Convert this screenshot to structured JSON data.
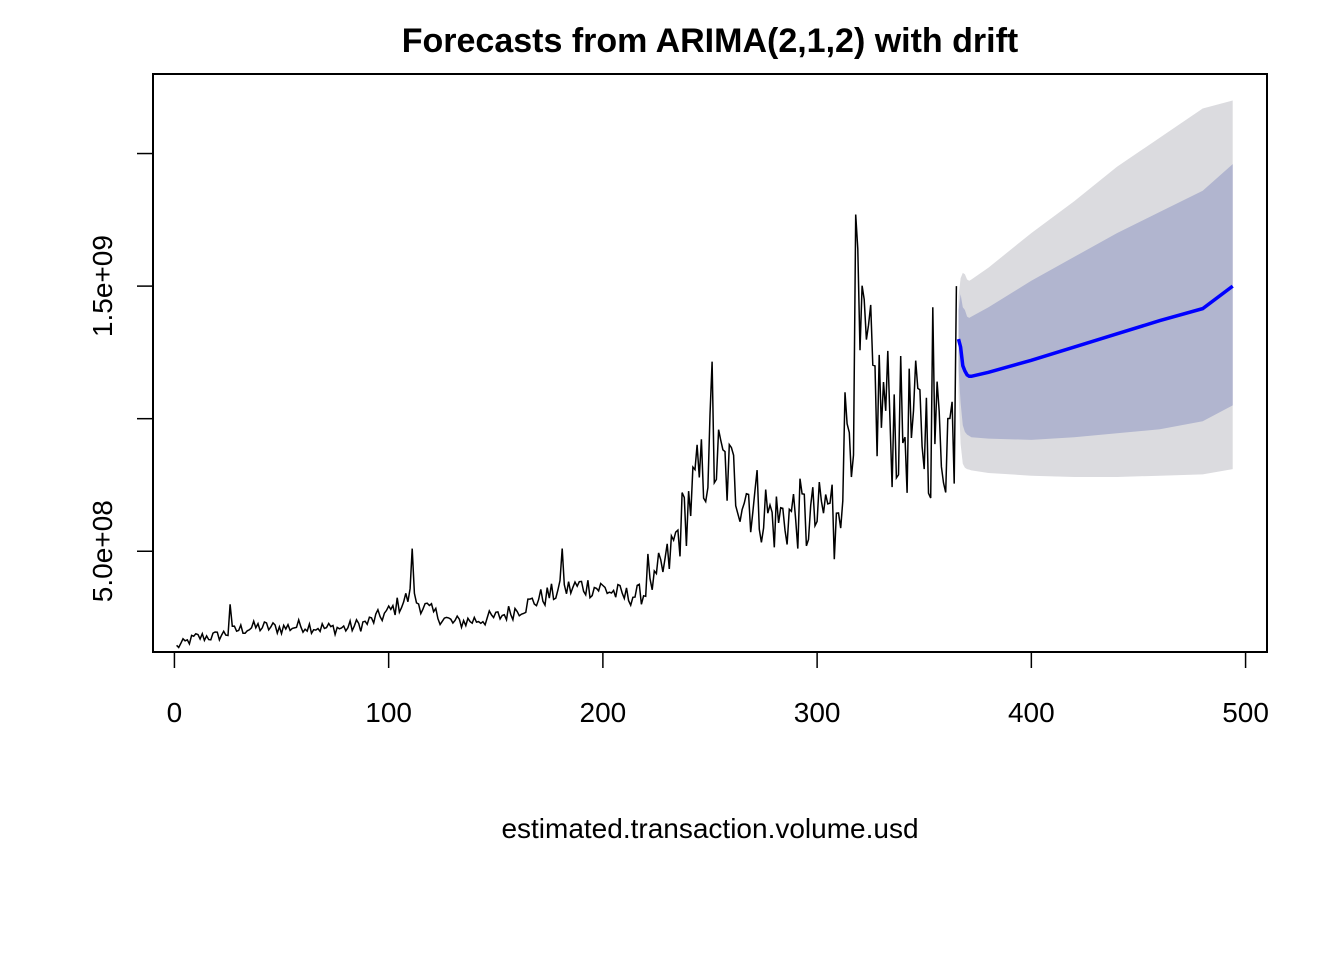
{
  "chart_data": {
    "type": "line",
    "title": "Forecasts from ARIMA(2,1,2) with drift",
    "xlabel": "estimated.transaction.volume.usd",
    "ylabel": "",
    "xlim": [
      -10,
      510
    ],
    "ylim": [
      120000000,
      2300000000
    ],
    "x_ticks": [
      {
        "value": 0,
        "label": "0"
      },
      {
        "value": 100,
        "label": "100"
      },
      {
        "value": 200,
        "label": "200"
      },
      {
        "value": 300,
        "label": "300"
      },
      {
        "value": 400,
        "label": "400"
      },
      {
        "value": 500,
        "label": "500"
      }
    ],
    "y_ticks": [
      {
        "value": 500000000,
        "label": "5.0e+08"
      },
      {
        "value": 1000000000,
        "label": ""
      },
      {
        "value": 1500000000,
        "label": "1.5e+09"
      },
      {
        "value": 2000000000,
        "label": ""
      }
    ],
    "colors": {
      "history": "#000000",
      "forecast": "#0000ff",
      "band80": "#b1b5cf",
      "band95": "#dbdbdf"
    },
    "history": {
      "name": "",
      "x_start": 1,
      "x_end": 365,
      "anchors": [
        [
          1,
          140000000
        ],
        [
          10,
          175000000
        ],
        [
          20,
          180000000
        ],
        [
          30,
          205000000
        ],
        [
          40,
          215000000
        ],
        [
          50,
          210000000
        ],
        [
          60,
          220000000
        ],
        [
          70,
          210000000
        ],
        [
          80,
          210000000
        ],
        [
          90,
          230000000
        ],
        [
          100,
          270000000
        ],
        [
          110,
          330000000
        ],
        [
          120,
          270000000
        ],
        [
          130,
          230000000
        ],
        [
          140,
          240000000
        ],
        [
          150,
          250000000
        ],
        [
          160,
          280000000
        ],
        [
          170,
          320000000
        ],
        [
          180,
          350000000
        ],
        [
          190,
          370000000
        ],
        [
          200,
          360000000
        ],
        [
          210,
          330000000
        ],
        [
          220,
          340000000
        ],
        [
          230,
          450000000
        ],
        [
          240,
          680000000
        ],
        [
          250,
          860000000
        ],
        [
          260,
          780000000
        ],
        [
          270,
          700000000
        ],
        [
          280,
          620000000
        ],
        [
          290,
          640000000
        ],
        [
          300,
          620000000
        ],
        [
          310,
          720000000
        ],
        [
          315,
          1050000000
        ],
        [
          320,
          1200000000
        ],
        [
          330,
          1050000000
        ],
        [
          340,
          960000000
        ],
        [
          350,
          960000000
        ],
        [
          360,
          940000000
        ],
        [
          365,
          1000000000
        ]
      ],
      "spikes": [
        [
          26,
          300000000
        ],
        [
          111,
          510000000
        ],
        [
          181,
          510000000
        ],
        [
          251,
          1215000000
        ],
        [
          318,
          1770000000
        ],
        [
          319,
          1640000000
        ],
        [
          322,
          1450000000
        ],
        [
          354,
          1420000000
        ],
        [
          365,
          1500000000
        ],
        [
          308,
          470000000
        ],
        [
          295,
          520000000
        ],
        [
          221,
          490000000
        ]
      ]
    },
    "forecast": {
      "name": "",
      "x": [
        366,
        367,
        368,
        369,
        370,
        371,
        372,
        380,
        400,
        420,
        440,
        460,
        480,
        494
      ],
      "mean": [
        1300000000,
        1270000000,
        1200000000,
        1180000000,
        1165000000,
        1160000000,
        1160000000,
        1175000000,
        1220000000,
        1270000000,
        1320000000,
        1370000000,
        1415000000,
        1500000000
      ],
      "lo80": [
        1190000000,
        1060000000,
        975000000,
        950000000,
        940000000,
        935000000,
        930000000,
        925000000,
        920000000,
        930000000,
        945000000,
        960000000,
        990000000,
        1050000000
      ],
      "hi80": [
        1410000000,
        1470000000,
        1420000000,
        1410000000,
        1385000000,
        1380000000,
        1385000000,
        1420000000,
        1520000000,
        1610000000,
        1700000000,
        1780000000,
        1860000000,
        1960000000
      ],
      "lo95": [
        1100000000,
        905000000,
        830000000,
        815000000,
        810000000,
        808000000,
        805000000,
        795000000,
        785000000,
        780000000,
        780000000,
        785000000,
        790000000,
        810000000
      ],
      "hi95": [
        1460000000,
        1530000000,
        1550000000,
        1545000000,
        1525000000,
        1520000000,
        1525000000,
        1570000000,
        1700000000,
        1820000000,
        1950000000,
        2060000000,
        2170000000,
        2200000000
      ]
    }
  }
}
